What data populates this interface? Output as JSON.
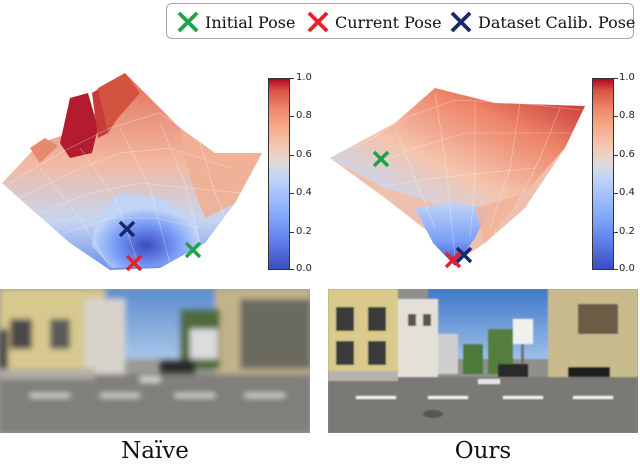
{
  "legend": {
    "items": [
      {
        "label": "Initial Pose",
        "color": "#1fa34a"
      },
      {
        "label": "Current Pose",
        "color": "#e8202a"
      },
      {
        "label": "Dataset Calib. Pose",
        "color": "#162a6b"
      }
    ]
  },
  "colorbar": {
    "ticks": [
      "1.0",
      "0.8",
      "0.6",
      "0.4",
      "0.2",
      "0.0"
    ],
    "colormap": "coolwarm"
  },
  "panels": [
    {
      "caption": "Naïve"
    },
    {
      "caption": "Ours"
    }
  ]
}
